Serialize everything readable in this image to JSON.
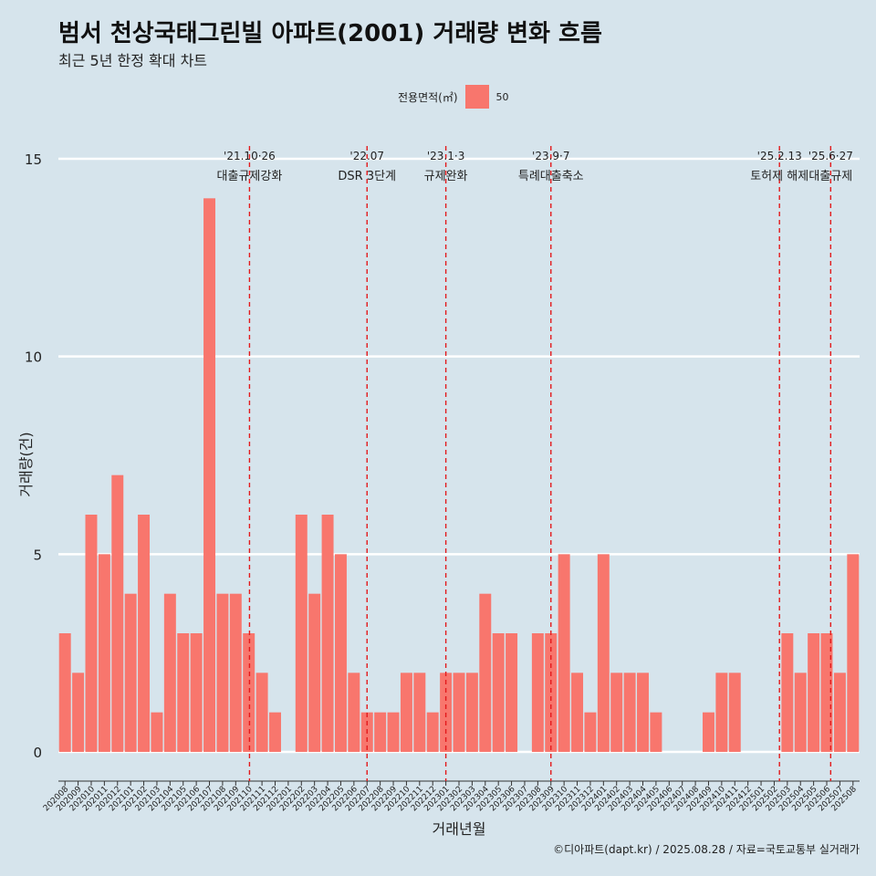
{
  "title": "범서 천상국태그린빌 아파트(2001) 거래량 변화 흐름",
  "subtitle": "최근 5년 한정 확대 차트",
  "legend": {
    "title": "전용면적(㎡)",
    "entry": "50"
  },
  "caption": "©디아파트(dapt.kr) / 2025.08.28 / 자료=국토교통부 실거래가",
  "chart_data": {
    "type": "bar",
    "xlabel": "거래년월",
    "ylabel": "거래량(건)",
    "ylim": [
      -0.6,
      15.6
    ],
    "yticks": [
      0,
      5,
      10,
      15
    ],
    "bar_color": "#f8766d",
    "background": "#d6e4ec",
    "grid": true,
    "legend_position": "top",
    "categories": [
      "202008",
      "202009",
      "202010",
      "202011",
      "202012",
      "202101",
      "202102",
      "202103",
      "202104",
      "202105",
      "202106",
      "202107",
      "202108",
      "202109",
      "202110",
      "202111",
      "202112",
      "202201",
      "202202",
      "202203",
      "202204",
      "202205",
      "202206",
      "202207",
      "202208",
      "202209",
      "202210",
      "202211",
      "202212",
      "202301",
      "202302",
      "202303",
      "202304",
      "202305",
      "202306",
      "202307",
      "202308",
      "202309",
      "202310",
      "202311",
      "202312",
      "202401",
      "202402",
      "202403",
      "202404",
      "202405",
      "202406",
      "202407",
      "202408",
      "202409",
      "202410",
      "202411",
      "202412",
      "202501",
      "202502",
      "202503",
      "202504",
      "202505",
      "202506",
      "202507",
      "202508"
    ],
    "series": [
      {
        "name": "50",
        "values": [
          3,
          2,
          6,
          5,
          7,
          4,
          6,
          1,
          4,
          3,
          3,
          14,
          4,
          4,
          3,
          2,
          1,
          0,
          6,
          4,
          6,
          5,
          2,
          1,
          1,
          1,
          2,
          2,
          1,
          2,
          2,
          2,
          4,
          3,
          3,
          0,
          3,
          3,
          5,
          2,
          1,
          5,
          2,
          2,
          2,
          1,
          0,
          0,
          0,
          1,
          2,
          2,
          0,
          0,
          0,
          3,
          2,
          3,
          3,
          2,
          5
        ]
      }
    ],
    "annotations": [
      {
        "x_index": 14.05,
        "date": "'21.10·26",
        "label": "대출규제강화"
      },
      {
        "x_index": 23.0,
        "date": "'22.07",
        "label": "DSR 3단계"
      },
      {
        "x_index": 29.0,
        "date": "'23.1·3",
        "label": "규제완화"
      },
      {
        "x_index": 37.0,
        "date": "'23.9·7",
        "label": "특례대출축소"
      },
      {
        "x_index": 54.4,
        "date": "'25.2.13",
        "label": "토허제 해제"
      },
      {
        "x_index": 58.3,
        "date": "'25.6·27",
        "label": "대출규제"
      }
    ]
  }
}
